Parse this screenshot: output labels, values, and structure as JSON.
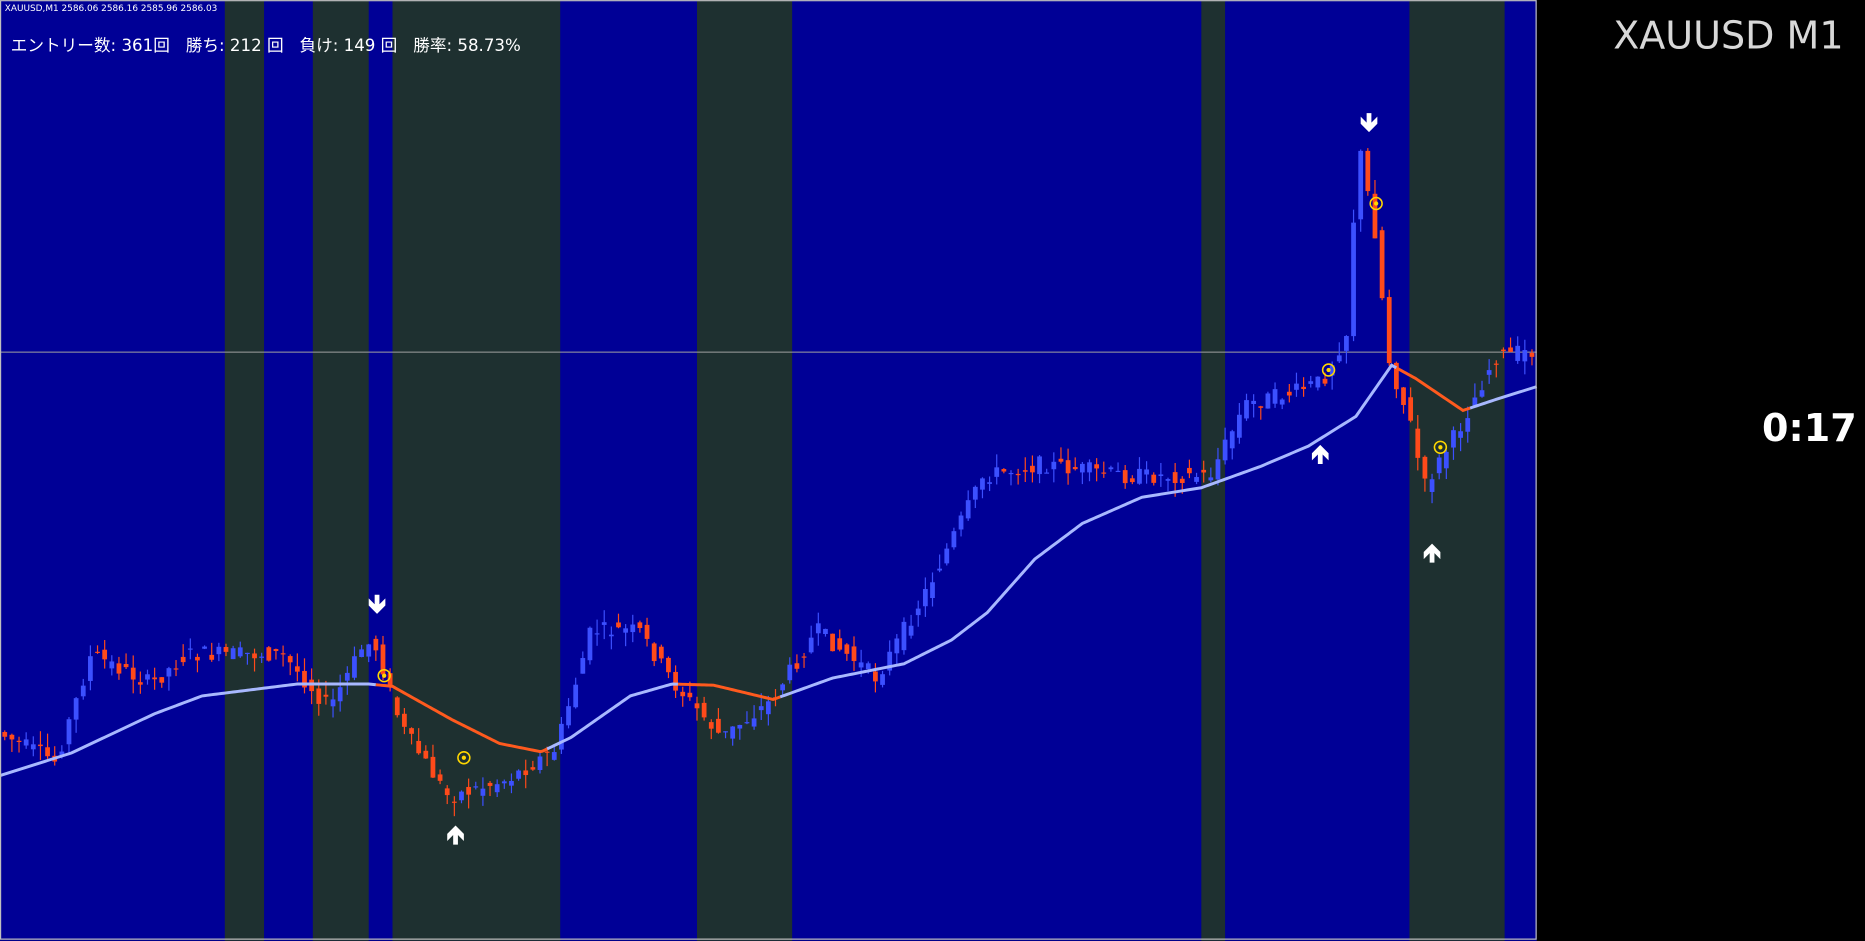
{
  "header": {
    "symbol_info": "XAUUSD,M1  2586.06 2586.16 2585.96 2586.03",
    "stats": "エントリー数: 361回   勝ち: 212 回   負け: 149 回   勝率: 58.73%"
  },
  "overlay": {
    "symbol": "XAUUSD M1",
    "timer": "0:17"
  }
}
